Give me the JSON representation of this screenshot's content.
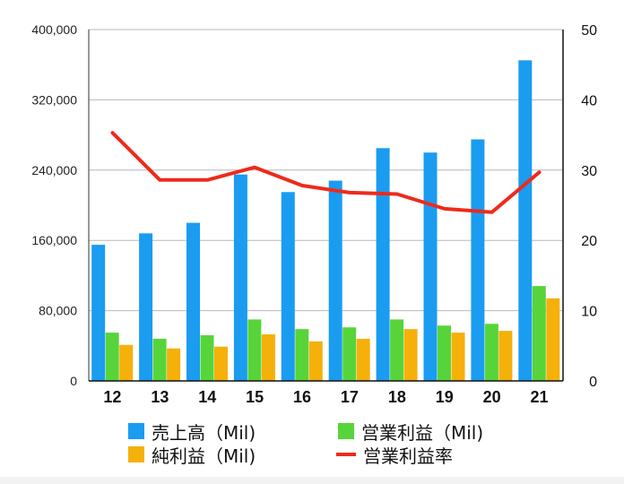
{
  "chart_data": {
    "type": "bar",
    "categories": [
      "12",
      "13",
      "14",
      "15",
      "16",
      "17",
      "18",
      "19",
      "20",
      "21"
    ],
    "series": [
      {
        "name": "売上高（Mil)",
        "color": "#1a9cf0",
        "axis": "left",
        "kind": "bar",
        "values": [
          155000,
          168000,
          180000,
          235000,
          215000,
          228000,
          265000,
          260000,
          275000,
          365000
        ]
      },
      {
        "name": "営業利益（Mil)",
        "color": "#57d43a",
        "axis": "left",
        "kind": "bar",
        "values": [
          55000,
          48000,
          52000,
          70000,
          59000,
          61000,
          70000,
          63000,
          65000,
          108000
        ]
      },
      {
        "name": "純利益（Mil)",
        "color": "#f5b00a",
        "axis": "left",
        "kind": "bar",
        "values": [
          41000,
          37000,
          39000,
          53000,
          45000,
          48000,
          59000,
          55000,
          57000,
          94000
        ]
      },
      {
        "name": "営業利益率",
        "color": "#ee2a1b",
        "axis": "right",
        "kind": "line",
        "values": [
          35.3,
          28.6,
          28.6,
          30.4,
          27.8,
          26.8,
          26.6,
          24.5,
          24.0,
          29.7
        ]
      }
    ],
    "ylim_left": [
      0,
      400000
    ],
    "ylim_right": [
      0,
      50
    ],
    "yticks_left": [
      "0",
      "80,000",
      "160,000",
      "240,000",
      "320,000",
      "400,000"
    ],
    "yticks_right": [
      "0",
      "10",
      "20",
      "30",
      "40",
      "50"
    ],
    "xlabel": "",
    "ylabel": "",
    "grid": true,
    "legend_position": "bottom"
  },
  "legend": {
    "sales": "売上高（Mil)",
    "operating_profit": "営業利益（Mil)",
    "net_profit": "純利益（Mil)",
    "operating_margin": "営業利益率"
  }
}
